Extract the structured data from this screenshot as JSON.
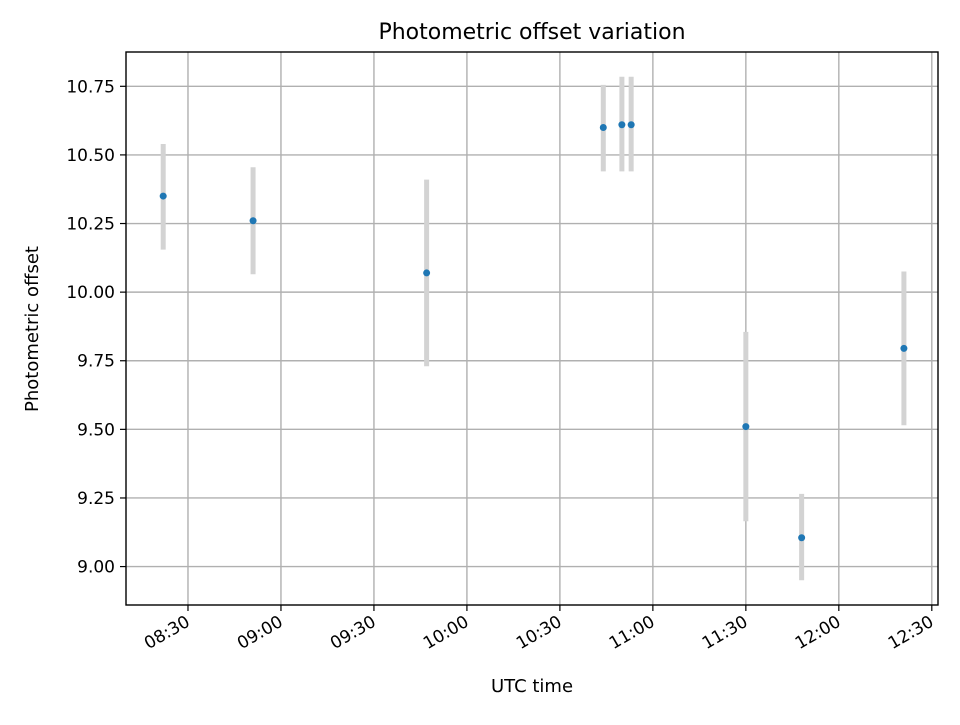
{
  "chart_data": {
    "type": "scatter",
    "title": "Photometric offset variation",
    "xlabel": "UTC time",
    "ylabel": "Photometric offset",
    "xlim": [
      "08:10",
      "12:32"
    ],
    "ylim": [
      8.86,
      10.875
    ],
    "xticks": [
      "08:30",
      "09:00",
      "09:30",
      "10:00",
      "10:30",
      "11:00",
      "11:30",
      "12:00",
      "12:30"
    ],
    "yticks": [
      "9.00",
      "9.25",
      "9.50",
      "9.75",
      "10.00",
      "10.25",
      "10.50",
      "10.75"
    ],
    "grid": true,
    "colors": {
      "point": "#1f77b4",
      "errorbar": "#d3d3d3",
      "grid": "#b0b0b0"
    },
    "points": [
      {
        "x": "08:22",
        "y": 10.35,
        "ylow": 10.155,
        "yhigh": 10.54
      },
      {
        "x": "08:51",
        "y": 10.26,
        "ylow": 10.065,
        "yhigh": 10.455
      },
      {
        "x": "09:47",
        "y": 10.07,
        "ylow": 9.73,
        "yhigh": 10.41
      },
      {
        "x": "10:44",
        "y": 10.6,
        "ylow": 10.44,
        "yhigh": 10.755
      },
      {
        "x": "10:50",
        "y": 10.61,
        "ylow": 10.44,
        "yhigh": 10.785
      },
      {
        "x": "10:53",
        "y": 10.61,
        "ylow": 10.44,
        "yhigh": 10.785
      },
      {
        "x": "11:30",
        "y": 9.51,
        "ylow": 9.165,
        "yhigh": 9.855
      },
      {
        "x": "11:48",
        "y": 9.105,
        "ylow": 8.95,
        "yhigh": 9.265
      },
      {
        "x": "12:21",
        "y": 9.795,
        "ylow": 9.515,
        "yhigh": 10.075
      }
    ]
  }
}
